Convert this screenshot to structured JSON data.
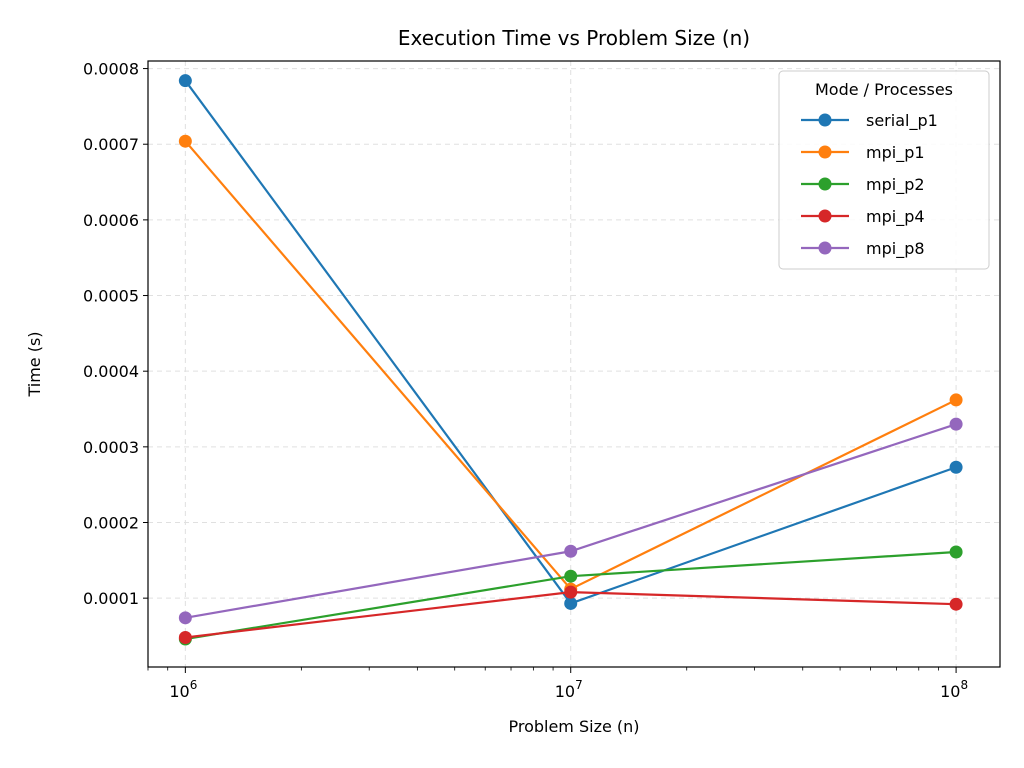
{
  "chart_data": {
    "type": "line",
    "title": "Execution Time vs Problem Size (n)",
    "xlabel": "Problem Size (n)",
    "ylabel": "Time (s)",
    "x_scale": "log",
    "xlim": [
      800000,
      130000000
    ],
    "ylim": [
      9e-06,
      0.00081
    ],
    "x": [
      1000000,
      10000000,
      100000000
    ],
    "x_tick_labels": [
      {
        "base": "10",
        "exp": "6"
      },
      {
        "base": "10",
        "exp": "7"
      },
      {
        "base": "10",
        "exp": "8"
      }
    ],
    "y_ticks": [
      0.0001,
      0.0002,
      0.0003,
      0.0004,
      0.0005,
      0.0006,
      0.0007,
      0.0008
    ],
    "y_tick_labels": [
      "0.0001",
      "0.0002",
      "0.0003",
      "0.0004",
      "0.0005",
      "0.0006",
      "0.0007",
      "0.0008"
    ],
    "grid": true,
    "legend": {
      "title": "Mode / Processes",
      "position": "top-right"
    },
    "series": [
      {
        "name": "serial_p1",
        "color": "#1f77b4",
        "values": [
          0.000784,
          9.3e-05,
          0.000273
        ]
      },
      {
        "name": "mpi_p1",
        "color": "#ff7f0e",
        "values": [
          0.000704,
          0.000112,
          0.000362
        ]
      },
      {
        "name": "mpi_p2",
        "color": "#2ca02c",
        "values": [
          4.6e-05,
          0.000129,
          0.000161
        ]
      },
      {
        "name": "mpi_p4",
        "color": "#d62728",
        "values": [
          4.8e-05,
          0.000108,
          9.2e-05
        ]
      },
      {
        "name": "mpi_p8",
        "color": "#9467bd",
        "values": [
          7.4e-05,
          0.000162,
          0.00033
        ]
      }
    ]
  }
}
